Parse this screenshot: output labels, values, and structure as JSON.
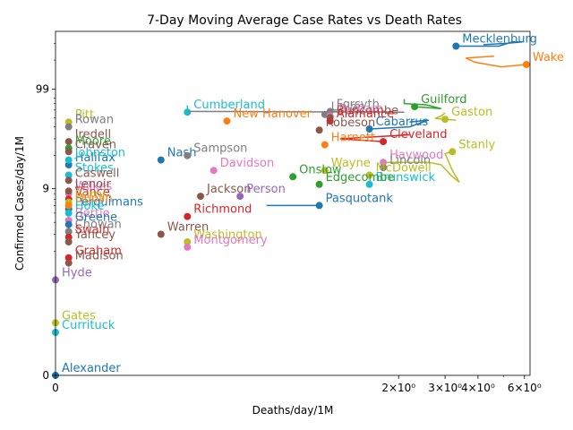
{
  "chart_data": {
    "type": "line",
    "title": "7-Day Moving Average Case Rates vs Death Rates",
    "xlabel": "Deaths/day/1M",
    "ylabel": "Confirmed Cases/day/1M",
    "x_scale": "symlog",
    "y_scale": "symlog",
    "x_ticks": [
      {
        "value": 0,
        "label": "0"
      },
      {
        "value": 2,
        "label": "2×10⁰"
      },
      {
        "value": 3,
        "label": "3×10⁰"
      },
      {
        "value": 4,
        "label": "4×10⁰"
      },
      {
        "value": 6,
        "label": "6×10⁰"
      }
    ],
    "y_ticks": [
      {
        "value": 0,
        "label": "0"
      },
      {
        "value": 9,
        "label": "9"
      },
      {
        "value": 99,
        "label": "99"
      }
    ],
    "xlim": [
      0,
      6.3
    ],
    "ylim": [
      0,
      400
    ],
    "grid": false,
    "legend": "none",
    "colors": [
      "#1f77b4",
      "#ff7f0e",
      "#2ca02c",
      "#d62728",
      "#9467bd",
      "#8c564b",
      "#e377c2",
      "#7f7f7f",
      "#bcbd22",
      "#17becf"
    ],
    "series": [
      {
        "name": "Mecklenburg",
        "color": "#1f77b4",
        "x": 3.3,
        "y": 280,
        "trail": [
          [
            3.3,
            280
          ],
          [
            4.8,
            280
          ],
          [
            5.4,
            310
          ],
          [
            5.9,
            310
          ],
          [
            5.2,
            300
          ],
          [
            4.2,
            290
          ]
        ]
      },
      {
        "name": "Wake",
        "color": "#ff7f0e",
        "x": 6.1,
        "y": 180,
        "trail": [
          [
            6.1,
            180
          ],
          [
            4.9,
            170
          ],
          [
            3.9,
            190
          ],
          [
            3.6,
            210
          ],
          [
            4.6,
            220
          ]
        ]
      },
      {
        "name": "Guilford",
        "color": "#2ca02c",
        "x": 2.3,
        "y": 65,
        "trail": [
          [
            2.3,
            65
          ],
          [
            2.9,
            62
          ],
          [
            2.55,
            68
          ],
          [
            2.1,
            70
          ],
          [
            2.1,
            78
          ]
        ]
      },
      {
        "name": "Gaston",
        "color": "#bcbd22",
        "x": 3.0,
        "y": 48,
        "trail": [
          [
            3.0,
            48
          ],
          [
            3.3,
            47
          ],
          [
            2.75,
            49
          ],
          [
            2.9,
            52
          ],
          [
            3.0,
            56
          ]
        ]
      },
      {
        "name": "Stanly",
        "color": "#bcbd22",
        "x": 3.2,
        "y": 22,
        "trail": [
          [
            3.2,
            22
          ],
          [
            3.0,
            21
          ],
          [
            3.2,
            14
          ],
          [
            3.4,
            10.5
          ],
          [
            3.2,
            12
          ],
          [
            2.9,
            16
          ],
          [
            2.6,
            17
          ],
          [
            1.8,
            17
          ]
        ]
      },
      {
        "name": "Cumberland",
        "color": "#17becf",
        "x": 0.5,
        "y": 57,
        "trail": [
          [
            0.5,
            57
          ],
          [
            0.5,
            67
          ]
        ]
      },
      {
        "name": "Forsyth",
        "color": "#7f7f7f",
        "x": 1.1,
        "y": 58,
        "trail": [
          [
            1.1,
            58
          ],
          [
            2.1,
            57
          ],
          [
            0.5,
            58
          ]
        ]
      },
      {
        "name": "Union",
        "color": "#7f7f7f",
        "x": 1.05,
        "y": 54,
        "trail": []
      },
      {
        "name": "Durham",
        "color": "#e377c2",
        "x": 1.1,
        "y": 52,
        "trail": []
      },
      {
        "name": "Buncombe",
        "color": "#8c564b",
        "x": 1.1,
        "y": 50,
        "trail": []
      },
      {
        "name": "New Hanover",
        "color": "#ff7f0e",
        "x": 0.65,
        "y": 46,
        "trail": []
      },
      {
        "name": "Cabarrus",
        "color": "#1f77b4",
        "x": 1.55,
        "y": 38,
        "trail": [
          [
            1.55,
            38
          ],
          [
            2.2,
            40
          ],
          [
            2.6,
            47
          ],
          [
            2.2,
            45
          ]
        ]
      },
      {
        "name": "Alamance",
        "color": "#d62728",
        "x": 1.1,
        "y": 46,
        "trail": []
      },
      {
        "name": "Robeson",
        "color": "#8c564b",
        "x": 1.0,
        "y": 37,
        "trail": []
      },
      {
        "name": "Cleveland",
        "color": "#d62728",
        "x": 1.75,
        "y": 28,
        "trail": [
          [
            1.75,
            28
          ],
          [
            1.2,
            30
          ],
          [
            2.2,
            33
          ]
        ]
      },
      {
        "name": "Harnett",
        "color": "#ff7f0e",
        "x": 1.05,
        "y": 26,
        "trail": []
      },
      {
        "name": "Haywood",
        "color": "#e377c2",
        "x": 1.75,
        "y": 17,
        "trail": []
      },
      {
        "name": "Lincoln",
        "color": "#7f7f7f",
        "x": 1.75,
        "y": 15,
        "trail": []
      },
      {
        "name": "McDowell",
        "color": "#bcbd22",
        "x": 1.55,
        "y": 12.5,
        "trail": []
      },
      {
        "name": "Brunswick",
        "color": "#17becf",
        "x": 1.55,
        "y": 10,
        "trail": []
      },
      {
        "name": "Pasquotank",
        "color": "#1f77b4",
        "x": 1.0,
        "y": 6,
        "trail": [
          [
            1.0,
            6
          ],
          [
            0.8,
            6
          ]
        ]
      },
      {
        "name": "Pitt",
        "color": "#bcbd22",
        "x": 0.05,
        "y": 45,
        "trail": []
      },
      {
        "name": "Rowan",
        "color": "#7f7f7f",
        "x": 0.05,
        "y": 40,
        "trail": []
      },
      {
        "name": "Iredell",
        "color": "#8c564b",
        "x": 0.05,
        "y": 28,
        "trail": []
      },
      {
        "name": "Moore",
        "color": "#2ca02c",
        "x": 0.05,
        "y": 24,
        "trail": []
      },
      {
        "name": "Halifax",
        "color": "#1f77b4",
        "x": 0.05,
        "y": 16,
        "trail": []
      },
      {
        "name": "Stokes",
        "color": "#17becf",
        "x": 0.05,
        "y": 12.5,
        "trail": []
      },
      {
        "name": "Caswell",
        "color": "#8c564b",
        "x": 0.05,
        "y": 11,
        "trail": []
      },
      {
        "name": "Wilkes",
        "color": "#e377c2",
        "x": 0.05,
        "y": 8,
        "trail": []
      },
      {
        "name": "Perquimans",
        "color": "#1f77b4",
        "x": 0.05,
        "y": 5.5,
        "trail": []
      },
      {
        "name": "Richmond",
        "color": "#d62728",
        "x": 0.5,
        "y": 4.6,
        "trail": []
      },
      {
        "name": "Bertie",
        "color": "#e377c2",
        "x": 0.05,
        "y": 4.2,
        "trail": []
      },
      {
        "name": "Greene",
        "color": "#1f77b4",
        "x": 0.05,
        "y": 3.8,
        "trail": []
      },
      {
        "name": "Chowan",
        "color": "#7f7f7f",
        "x": 0.05,
        "y": 3.2,
        "trail": []
      },
      {
        "name": "Warren",
        "color": "#8c564b",
        "x": 0.4,
        "y": 3.0,
        "trail": []
      },
      {
        "name": "Swain",
        "color": "#d62728",
        "x": 0.05,
        "y": 2.8,
        "trail": []
      },
      {
        "name": "Washington",
        "color": "#bcbd22",
        "x": 0.5,
        "y": 2.5,
        "trail": []
      },
      {
        "name": "Yancey",
        "color": "#8c564b",
        "x": 0.05,
        "y": 2.5,
        "trail": []
      },
      {
        "name": "Montgomery",
        "color": "#e377c2",
        "x": 0.5,
        "y": 2.2,
        "trail": []
      },
      {
        "name": "Graham",
        "color": "#d62728",
        "x": 0.05,
        "y": 1.7,
        "trail": []
      },
      {
        "name": "Madison",
        "color": "#8c564b",
        "x": 0.05,
        "y": 1.5,
        "trail": []
      },
      {
        "name": "Hyde",
        "color": "#9467bd",
        "x": 0.0,
        "y": 1.0,
        "trail": []
      },
      {
        "name": "Gates",
        "color": "#bcbd22",
        "x": 0.0,
        "y": 0.55,
        "trail": []
      },
      {
        "name": "Currituck",
        "color": "#17becf",
        "x": 0.0,
        "y": 0.45,
        "trail": []
      },
      {
        "name": "Alexander",
        "color": "#1f77b4",
        "x": 0.0,
        "y": 0.0,
        "trail": []
      },
      {
        "name": "Edgecombe",
        "color": "#2ca02c",
        "x": 1.0,
        "y": 10,
        "trail": []
      },
      {
        "name": "Craven",
        "color": "#8c564b",
        "x": 0.05,
        "y": 22,
        "trail": []
      },
      {
        "name": "Johnston",
        "color": "#17becf",
        "x": 0.05,
        "y": 18,
        "trail": []
      },
      {
        "name": "Wayne",
        "color": "#bcbd22",
        "x": 1.05,
        "y": 14,
        "trail": []
      },
      {
        "name": "Onslow",
        "color": "#2ca02c",
        "x": 0.9,
        "y": 12,
        "trail": []
      },
      {
        "name": "Jackson",
        "color": "#8c564b",
        "x": 0.55,
        "y": 7.5,
        "trail": []
      },
      {
        "name": "Nash",
        "color": "#1f77b4",
        "x": 0.4,
        "y": 18,
        "trail": []
      },
      {
        "name": "Davidson",
        "color": "#e377c2",
        "x": 0.6,
        "y": 14,
        "trail": []
      },
      {
        "name": "Sampson",
        "color": "#7f7f7f",
        "x": 0.5,
        "y": 20,
        "trail": []
      },
      {
        "name": "Lenoir",
        "color": "#8c564b",
        "x": 0.05,
        "y": 8.5,
        "trail": []
      },
      {
        "name": "Vance",
        "color": "#d62728",
        "x": 0.05,
        "y": 7,
        "trail": []
      },
      {
        "name": "Surry",
        "color": "#bcbd22",
        "x": 0.05,
        "y": 6.5,
        "trail": []
      },
      {
        "name": "Person",
        "color": "#9467bd",
        "x": 0.7,
        "y": 7.5,
        "trail": []
      },
      {
        "name": "Duplin",
        "color": "#ff7f0e",
        "x": 0.05,
        "y": 6,
        "trail": []
      },
      {
        "name": "Hoke",
        "color": "#17becf",
        "x": 0.05,
        "y": 5,
        "trail": []
      }
    ]
  }
}
